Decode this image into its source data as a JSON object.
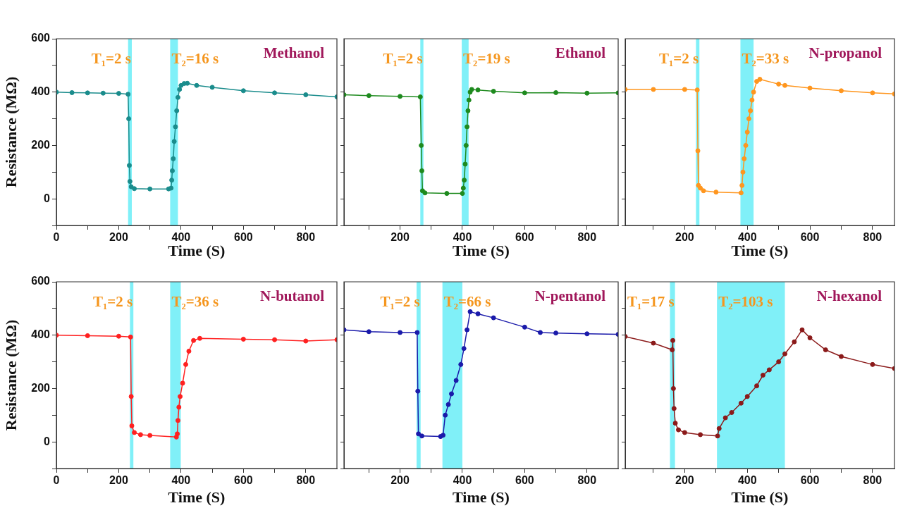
{
  "chart_data": [
    {
      "type": "line",
      "xlabel": "Time (S)",
      "ylabel": "Resistance (MΩ)",
      "xlim": [
        0,
        900
      ],
      "ylim": [
        -100,
        600
      ],
      "xticks": [
        0,
        {
          "value": 100,
          "label": null
        },
        200,
        {
          "value": 300,
          "label": null
        },
        400,
        {
          "value": 500,
          "label": null
        },
        600,
        {
          "value": 700,
          "label": null
        },
        800
      ],
      "yticks": [
        {
          "value": -100,
          "label": null
        },
        0,
        {
          "value": 100,
          "label": null
        },
        200,
        {
          "value": 300,
          "label": null
        },
        400,
        {
          "value": 500,
          "label": null
        },
        600
      ],
      "series": [
        {
          "color": "#1a8c8c",
          "x": [
            0,
            50,
            100,
            150,
            200,
            230,
            232,
            234,
            236,
            240,
            250,
            300,
            360,
            368,
            370,
            372,
            375,
            378,
            382,
            386,
            390,
            395,
            400,
            410,
            420,
            450,
            500,
            600,
            700,
            800,
            900
          ],
          "values": [
            400,
            398,
            397,
            396,
            395,
            392,
            300,
            125,
            65,
            45,
            38,
            37,
            37,
            40,
            70,
            105,
            150,
            215,
            270,
            330,
            380,
            410,
            425,
            432,
            433,
            425,
            418,
            405,
            397,
            390,
            382
          ]
        }
      ],
      "bands": [
        {
          "axis": "x",
          "from": 230,
          "to": 242,
          "color": "#80f0f8"
        },
        {
          "axis": "x",
          "from": 365,
          "to": 390,
          "color": "#80f0f8"
        }
      ],
      "annotations": [
        "T₁=2 s",
        "T₂=16 s",
        "Methanol"
      ],
      "grid": false,
      "legend": false,
      "marker": "circle"
    },
    {
      "type": "line",
      "xlabel": "Time (S)",
      "xlim": [
        20,
        900
      ],
      "ylim": [
        -100,
        600
      ],
      "xticks": [
        {
          "value": 100,
          "label": null
        },
        200,
        {
          "value": 300,
          "label": null
        },
        400,
        {
          "value": 500,
          "label": null
        },
        600,
        {
          "value": 700,
          "label": null
        },
        800
      ],
      "yticks": [
        {
          "value": -100,
          "label": null
        },
        {
          "value": 0,
          "label": null
        },
        {
          "value": 100,
          "label": null
        },
        {
          "value": 200,
          "label": null
        },
        {
          "value": 300,
          "label": null
        },
        {
          "value": 400,
          "label": null
        },
        {
          "value": 500,
          "label": null
        }
      ],
      "tick_labels": "x",
      "series": [
        {
          "color": "#1e8a1e",
          "x": [
            20,
            100,
            200,
            265,
            268,
            270,
            272,
            280,
            350,
            400,
            403,
            406,
            409,
            412,
            415,
            418,
            421,
            425,
            430,
            450,
            500,
            600,
            700,
            800,
            900
          ],
          "values": [
            390,
            387,
            384,
            382,
            200,
            105,
            30,
            22,
            20,
            20,
            40,
            70,
            130,
            200,
            270,
            330,
            370,
            400,
            410,
            408,
            403,
            397,
            398,
            396,
            397
          ]
        }
      ],
      "bands": [
        {
          "axis": "x",
          "from": 265,
          "to": 275,
          "color": "#80f0f8"
        },
        {
          "axis": "x",
          "from": 398,
          "to": 420,
          "color": "#80f0f8"
        }
      ],
      "annotations": [
        "T₁=2 s",
        "T₂=19 s",
        "Ethanol"
      ],
      "grid": false,
      "legend": false,
      "marker": "circle"
    },
    {
      "type": "line",
      "xlabel": "Time (S)",
      "xlim": [
        10,
        870
      ],
      "ylim": [
        -100,
        600
      ],
      "xticks": [
        {
          "value": 100,
          "label": null
        },
        200,
        {
          "value": 300,
          "label": null
        },
        400,
        {
          "value": 500,
          "label": null
        },
        600,
        {
          "value": 700,
          "label": null
        },
        800
      ],
      "yticks": [
        {
          "value": -100,
          "label": null
        },
        {
          "value": 0,
          "label": null
        },
        {
          "value": 100,
          "label": null
        },
        {
          "value": 200,
          "label": null
        },
        {
          "value": 300,
          "label": null
        },
        {
          "value": 400,
          "label": null
        },
        {
          "value": 500,
          "label": null
        }
      ],
      "tick_labels": "x",
      "series": [
        {
          "color": "#ff961e",
          "x": [
            10,
            100,
            200,
            240,
            242,
            244,
            250,
            260,
            300,
            380,
            383,
            386,
            390,
            395,
            400,
            405,
            410,
            415,
            420,
            430,
            440,
            500,
            520,
            600,
            700,
            800,
            870
          ],
          "values": [
            410,
            410,
            410,
            408,
            180,
            50,
            40,
            30,
            25,
            22,
            50,
            100,
            150,
            200,
            250,
            300,
            330,
            370,
            400,
            440,
            448,
            430,
            425,
            415,
            405,
            397,
            393
          ]
        }
      ],
      "bands": [
        {
          "axis": "x",
          "from": 236,
          "to": 247,
          "color": "#80f0f8"
        },
        {
          "axis": "x",
          "from": 378,
          "to": 420,
          "color": "#80f0f8"
        }
      ],
      "annotations": [
        "T₁=2 s",
        "T₂=33 s",
        "N-propanol"
      ],
      "grid": false,
      "legend": false,
      "marker": "circle"
    },
    {
      "type": "line",
      "xlabel": "Time (S)",
      "ylabel": "Resistance (MΩ)",
      "xlim": [
        0,
        900
      ],
      "ylim": [
        -100,
        600
      ],
      "xticks": [
        0,
        {
          "value": 100,
          "label": null
        },
        200,
        {
          "value": 300,
          "label": null
        },
        400,
        {
          "value": 500,
          "label": null
        },
        600,
        {
          "value": 700,
          "label": null
        },
        800
      ],
      "yticks": [
        {
          "value": -100,
          "label": null
        },
        0,
        {
          "value": 100,
          "label": null
        },
        200,
        {
          "value": 300,
          "label": null
        },
        400,
        {
          "value": 500,
          "label": null
        },
        600
      ],
      "series": [
        {
          "color": "#ff2020",
          "x": [
            0,
            100,
            200,
            238,
            240,
            242,
            250,
            270,
            300,
            385,
            388,
            390,
            393,
            397,
            405,
            415,
            425,
            440,
            460,
            600,
            700,
            800,
            900
          ],
          "values": [
            400,
            398,
            396,
            393,
            170,
            60,
            35,
            27,
            24,
            18,
            30,
            80,
            130,
            170,
            220,
            290,
            340,
            380,
            388,
            385,
            383,
            378,
            383
          ]
        }
      ],
      "bands": [
        {
          "axis": "x",
          "from": 236,
          "to": 247,
          "color": "#80f0f8"
        },
        {
          "axis": "x",
          "from": 365,
          "to": 399,
          "color": "#80f0f8"
        }
      ],
      "annotations": [
        "T₁=2 s",
        "T₂=36 s",
        "N-butanol"
      ],
      "grid": false,
      "legend": false,
      "marker": "circle"
    },
    {
      "type": "line",
      "xlabel": "Time (S)",
      "xlim": [
        20,
        900
      ],
      "ylim": [
        -100,
        600
      ],
      "xticks": [
        {
          "value": 100,
          "label": null
        },
        200,
        {
          "value": 300,
          "label": null
        },
        400,
        {
          "value": 500,
          "label": null
        },
        600,
        {
          "value": 700,
          "label": null
        },
        800
      ],
      "yticks": [
        {
          "value": -100,
          "label": null
        },
        {
          "value": 0,
          "label": null
        },
        {
          "value": 100,
          "label": null
        },
        {
          "value": 200,
          "label": null
        },
        {
          "value": 300,
          "label": null
        },
        {
          "value": 400,
          "label": null
        },
        {
          "value": 500,
          "label": null
        }
      ],
      "tick_labels": "x",
      "series": [
        {
          "color": "#1a1aaa",
          "x": [
            20,
            100,
            200,
            255,
            257,
            259,
            270,
            330,
            338,
            345,
            355,
            365,
            380,
            395,
            405,
            415,
            425,
            450,
            500,
            600,
            650,
            700,
            800,
            900
          ],
          "values": [
            420,
            413,
            410,
            410,
            190,
            30,
            22,
            20,
            25,
            100,
            140,
            180,
            230,
            290,
            350,
            420,
            488,
            480,
            465,
            430,
            410,
            408,
            405,
            403
          ]
        }
      ],
      "bands": [
        {
          "axis": "x",
          "from": 253,
          "to": 266,
          "color": "#80f0f8"
        },
        {
          "axis": "x",
          "from": 336,
          "to": 400,
          "color": "#80f0f8"
        }
      ],
      "annotations": [
        "T₁=2 s",
        "T₂=66 s",
        "N-pentanol"
      ],
      "grid": false,
      "legend": false,
      "marker": "circle"
    },
    {
      "type": "line",
      "xlabel": "Time (S)",
      "xlim": [
        10,
        870
      ],
      "ylim": [
        -100,
        600
      ],
      "xticks": [
        {
          "value": 100,
          "label": null
        },
        200,
        {
          "value": 300,
          "label": null
        },
        400,
        {
          "value": 500,
          "label": null
        },
        600,
        {
          "value": 700,
          "label": null
        },
        800
      ],
      "yticks": [
        {
          "value": -100,
          "label": null
        },
        {
          "value": 0,
          "label": null
        },
        {
          "value": 100,
          "label": null
        },
        {
          "value": 200,
          "label": null
        },
        {
          "value": 300,
          "label": null
        },
        {
          "value": 400,
          "label": null
        },
        {
          "value": 500,
          "label": null
        }
      ],
      "tick_labels": "x",
      "series": [
        {
          "color": "#8b1a1a",
          "x": [
            10,
            100,
            160,
            162,
            164,
            166,
            170,
            180,
            200,
            250,
            305,
            310,
            330,
            350,
            380,
            400,
            430,
            450,
            470,
            500,
            520,
            550,
            575,
            600,
            650,
            700,
            800,
            870
          ],
          "values": [
            395,
            370,
            345,
            380,
            200,
            125,
            70,
            45,
            35,
            27,
            22,
            50,
            90,
            110,
            145,
            170,
            210,
            250,
            270,
            300,
            330,
            375,
            420,
            390,
            345,
            320,
            290,
            275
          ]
        }
      ],
      "bands": [
        {
          "axis": "x",
          "from": 153,
          "to": 169,
          "color": "#80f0f8"
        },
        {
          "axis": "x",
          "from": 303,
          "to": 520,
          "color": "#80f0f8"
        }
      ],
      "annotations": [
        "T₁=17 s",
        "T₂=103 s",
        "N-hexanol"
      ],
      "grid": false,
      "legend": false,
      "marker": "circle"
    }
  ]
}
